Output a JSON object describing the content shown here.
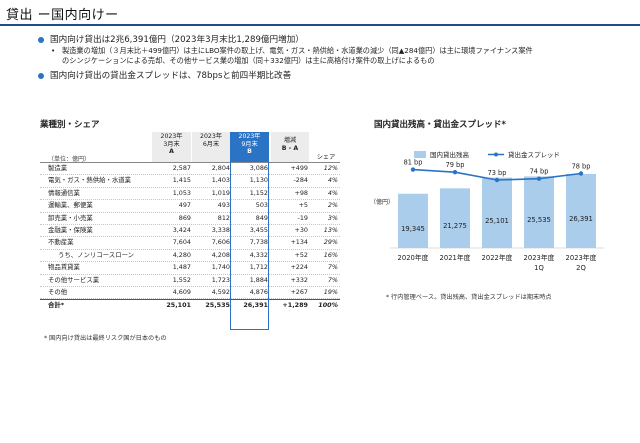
{
  "title": "貸出 ー国内向けー",
  "bullets": {
    "b1": "国内向け貸出は2兆6,391億円（2023年3月末比1,289億円増加）",
    "b1_sub": [
      "製造業の増加（３月末比＋499億円）は主にLBO案件の取上げ、電気・ガス・熱供給・水道業の減少（同▲284億円）は主に環境ファイナンス案件",
      "のシンジケーションによる売却、その他サービス業の増加（同＋332億円）は主に高格付け案件の取上げによるもの"
    ],
    "b2": "国内向け貸出の貸出金スプレッドは、78bpsと前四半期比改善"
  },
  "sub_marker": "•",
  "table": {
    "section_title": "業種別・シェア",
    "unit_label": "（単位：億円）",
    "col_a": [
      "2023年",
      "3月末",
      "A"
    ],
    "col_b0": [
      "2023年",
      "6月末"
    ],
    "col_b": [
      "2023年",
      "9月末",
      "B"
    ],
    "col_diff": [
      "増減",
      "B - A"
    ],
    "col_share": "シェア",
    "rows": [
      {
        "label": "製造業",
        "a": "2,587",
        "b0": "2,804",
        "b": "3,086",
        "d": "+499",
        "s": "12%"
      },
      {
        "label": "電気・ガス・熱供給・水道業",
        "a": "1,415",
        "b0": "1,403",
        "b": "1,130",
        "d": "-284",
        "s": "4%"
      },
      {
        "label": "情報通信業",
        "a": "1,053",
        "b0": "1,019",
        "b": "1,152",
        "d": "+98",
        "s": "4%"
      },
      {
        "label": "運輸業、郵便業",
        "a": "497",
        "b0": "493",
        "b": "503",
        "d": "+5",
        "s": "2%"
      },
      {
        "label": "卸売業・小売業",
        "a": "869",
        "b0": "812",
        "b": "849",
        "d": "-19",
        "s": "3%"
      },
      {
        "label": "金融業・保険業",
        "a": "3,424",
        "b0": "3,338",
        "b": "3,455",
        "d": "+30",
        "s": "13%"
      },
      {
        "label": "不動産業",
        "a": "7,604",
        "b0": "7,606",
        "b": "7,738",
        "d": "+134",
        "s": "29%"
      },
      {
        "label": "うち、ノンリコースローン",
        "a": "4,280",
        "b0": "4,208",
        "b": "4,332",
        "d": "+52",
        "s": "16%",
        "indent": true
      },
      {
        "label": "物品賃貸業",
        "a": "1,487",
        "b0": "1,740",
        "b": "1,712",
        "d": "+224",
        "s": "7%"
      },
      {
        "label": "その他サービス業",
        "a": "1,552",
        "b0": "1,723",
        "b": "1,884",
        "d": "+332",
        "s": "7%"
      },
      {
        "label": "その他",
        "a": "4,609",
        "b0": "4,592",
        "b": "4,876",
        "d": "+267",
        "s": "19%"
      }
    ],
    "total": {
      "label": "合計*",
      "a": "25,101",
      "b0": "25,535",
      "b": "26,391",
      "d": "+1,289",
      "s": "100%"
    },
    "footnote": "* 国内向け貸出は最終リスク国が日本のもの"
  },
  "chart_data": {
    "type": "bar+line",
    "title": "国内貸出残高・貸出金スプレッド*",
    "categories": [
      [
        "2020年度"
      ],
      [
        "2021年度"
      ],
      [
        "2022年度"
      ],
      [
        "2023年度",
        "1Q"
      ],
      [
        "2023年度",
        "2Q"
      ]
    ],
    "series": [
      {
        "name": "国内貸出残高",
        "type": "bar",
        "values": [
          19345,
          21275,
          25101,
          25535,
          26391
        ],
        "labels": [
          "19,345",
          "21,275",
          "25,101",
          "25,535",
          "26,391"
        ],
        "color": "#a9cdea"
      },
      {
        "name": "貸出金スプレッド",
        "type": "line",
        "values": [
          81,
          79,
          73,
          74,
          78
        ],
        "labels": [
          "81 bp",
          "79 bp",
          "73 bp",
          "74 bp",
          "78 bp"
        ],
        "color": "#2b73c4"
      }
    ],
    "ylabel": "（億円）",
    "ylim": [
      0,
      30000
    ],
    "line_ylim": [
      40,
      90
    ],
    "grid": false,
    "legend": "top",
    "footnote": "* 行内管理ベース。貸出残高、貸出金スプレッドは期末時点"
  },
  "colors": {
    "accent": "#2b73c4",
    "header_gray": "#ececec",
    "bar": "#a9cdea",
    "title_rule": "#1f4e8c"
  }
}
